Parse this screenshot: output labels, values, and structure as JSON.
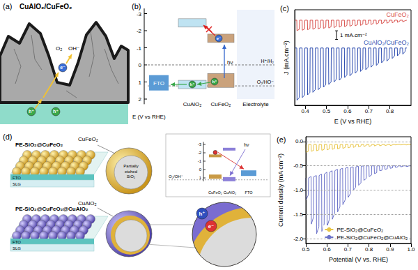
{
  "panel_a": {
    "label": "(a)",
    "title": "CuAlO₂/CuFeO₂",
    "species": [
      "O₂",
      "OH⁻"
    ],
    "electron": "e⁻",
    "hole": "h⁺"
  },
  "panel_b": {
    "label": "(b)",
    "axis_label": "E (V vs RHE)",
    "axis_ticks": [
      -3,
      -2,
      -1,
      0,
      1,
      2
    ],
    "fto": "FTO",
    "photon": "hν",
    "layers": [
      "CuAlO₂",
      "CuFeO₂",
      "Electrolyte"
    ],
    "couples": [
      "H⁺/H₂",
      "O₂/HO⁻"
    ],
    "electron": "e⁻",
    "hole": "h⁺"
  },
  "panel_d": {
    "label": "(d)",
    "top": {
      "name": "PE-SiO₂@CuFeO₂",
      "shell": "CuFeO₂",
      "core": "Partially etched SiO₂"
    },
    "bottom": {
      "name": "PE-SiO₂@CuFeO₂@CuAlO₂",
      "shell": "CuAlO₂"
    },
    "substrate": [
      "FTO",
      "SLG"
    ],
    "inset": {
      "axis_ticks": [
        -3,
        -2,
        -1,
        0,
        1
      ],
      "couple": "O₂/OH⁻",
      "layers": [
        "CuFeO₂",
        "CuAlO₂",
        "FTO"
      ],
      "photon": "hν"
    },
    "electron": "e⁻",
    "hole": "h⁺"
  },
  "chart_data": [
    {
      "type": "line",
      "title": "(c)",
      "x_label": "E (V vs RHE)",
      "y_label": "J (mA.cm⁻²)",
      "xlim": [
        0.35,
        0.9
      ],
      "xticks": [
        0.4,
        0.5,
        0.6,
        0.7,
        0.8
      ],
      "ylim": [
        -11,
        0
      ],
      "tick_labels": "x",
      "scale_bar": {
        "value": 1,
        "label": "1 mA.cm⁻²"
      },
      "x": [
        0.35,
        0.36,
        0.361,
        0.372,
        0.373,
        0.385,
        0.386,
        0.397,
        0.398,
        0.41,
        0.411,
        0.422,
        0.423,
        0.435,
        0.436,
        0.447,
        0.448,
        0.46,
        0.461,
        0.472,
        0.473,
        0.485,
        0.486,
        0.497,
        0.498,
        0.51,
        0.511,
        0.522,
        0.523,
        0.535,
        0.536,
        0.547,
        0.548,
        0.56,
        0.561,
        0.572,
        0.573,
        0.585,
        0.586,
        0.597,
        0.598,
        0.61,
        0.611,
        0.622,
        0.623,
        0.635,
        0.636,
        0.647,
        0.648,
        0.66,
        0.661,
        0.672,
        0.673,
        0.685,
        0.686,
        0.697,
        0.698,
        0.71,
        0.711,
        0.722,
        0.723,
        0.735,
        0.736,
        0.747,
        0.748,
        0.76,
        0.761,
        0.772,
        0.773,
        0.785,
        0.786,
        0.797,
        0.798,
        0.81,
        0.811,
        0.822,
        0.823,
        0.835,
        0.836,
        0.847,
        0.848,
        0.86,
        0.861,
        0.872,
        0.873,
        0.88
      ],
      "series": [
        {
          "name": "CuFeO₂",
          "color": "#d9534f",
          "values": [
            -1.2,
            -1.2,
            -2.4,
            -2.25,
            -1.2,
            -1.2,
            -2.35,
            -2.2,
            -1.2,
            -1.2,
            -2.3,
            -2.15,
            -1.2,
            -1.2,
            -2.25,
            -2.1,
            -1.2,
            -1.2,
            -2.2,
            -2.05,
            -1.2,
            -1.2,
            -2.15,
            -2.0,
            -1.2,
            -1.2,
            -2.1,
            -1.95,
            -1.2,
            -1.2,
            -2.05,
            -1.9,
            -1.2,
            -1.2,
            -2.0,
            -1.85,
            -1.2,
            -1.2,
            -1.95,
            -1.8,
            -1.2,
            -1.2,
            -1.9,
            -1.75,
            -1.2,
            -1.2,
            -1.85,
            -1.7,
            -1.2,
            -1.2,
            -1.8,
            -1.65,
            -1.2,
            -1.2,
            -1.75,
            -1.6,
            -1.2,
            -1.2,
            -1.7,
            -1.55,
            -1.2,
            -1.2,
            -1.65,
            -1.5,
            -1.2,
            -1.2,
            -1.6,
            -1.45,
            -1.2,
            -1.2,
            -1.55,
            -1.4,
            -1.2,
            -1.2,
            -1.5,
            -1.35,
            -1.2,
            -1.2,
            -1.45,
            -1.3,
            -1.2,
            -1.2,
            -1.4,
            -1.25,
            -1.2,
            -1.2
          ]
        },
        {
          "name": "CuAlO₂/CuFeO₂",
          "color": "#2e4db0",
          "values": [
            -4.4,
            -4.4,
            -10.4,
            -10.1,
            -4.4,
            -4.4,
            -10.1,
            -9.8,
            -4.4,
            -4.4,
            -9.8,
            -9.5,
            -4.4,
            -4.4,
            -9.5,
            -9.2,
            -4.4,
            -4.4,
            -9.2,
            -8.9,
            -4.4,
            -4.4,
            -8.9,
            -8.6,
            -4.4,
            -4.4,
            -8.6,
            -8.3,
            -4.4,
            -4.4,
            -8.3,
            -8.0,
            -4.4,
            -4.4,
            -8.1,
            -7.8,
            -4.4,
            -4.4,
            -7.8,
            -7.5,
            -4.4,
            -4.4,
            -7.6,
            -7.3,
            -4.4,
            -4.4,
            -7.3,
            -7.0,
            -4.4,
            -4.4,
            -7.1,
            -6.8,
            -4.4,
            -4.4,
            -6.9,
            -6.6,
            -4.4,
            -4.4,
            -6.6,
            -6.3,
            -4.4,
            -4.4,
            -6.4,
            -6.1,
            -4.4,
            -4.4,
            -6.1,
            -5.8,
            -4.4,
            -4.4,
            -5.9,
            -5.6,
            -4.4,
            -4.4,
            -5.6,
            -5.3,
            -4.4,
            -4.4,
            -5.3,
            -5.0,
            -4.4,
            -4.4,
            -5.1,
            -4.8,
            -4.4,
            -4.4
          ]
        }
      ]
    },
    {
      "type": "line",
      "title": "(e)",
      "x_label": "Potential (V vs. RHE)",
      "y_label": "Current density (mA cm⁻²)",
      "xlim": [
        0.5,
        1.0
      ],
      "xticks": [
        0.5,
        0.6,
        0.7,
        0.8,
        0.9,
        {
          "value": 1.0,
          "label": "1.0"
        }
      ],
      "ylim": [
        -2.1,
        0.1
      ],
      "yticks": [
        {
          "value": 0,
          "label": "0.0"
        },
        -0.5,
        {
          "value": -1,
          "label": "-1.0"
        },
        -1.5,
        {
          "value": -2,
          "label": "-2.0"
        }
      ],
      "grid": true,
      "legend": "lower right",
      "x": [
        0.5,
        0.501,
        0.512,
        0.513,
        0.525,
        0.526,
        0.537,
        0.538,
        0.55,
        0.551,
        0.562,
        0.563,
        0.575,
        0.576,
        0.587,
        0.588,
        0.6,
        0.601,
        0.612,
        0.613,
        0.625,
        0.626,
        0.637,
        0.638,
        0.65,
        0.651,
        0.662,
        0.663,
        0.675,
        0.676,
        0.687,
        0.688,
        0.7,
        0.701,
        0.712,
        0.713,
        0.725,
        0.726,
        0.737,
        0.738,
        0.75,
        0.751,
        0.762,
        0.763,
        0.775,
        0.776,
        0.787,
        0.788,
        0.8,
        0.801,
        0.812,
        0.813,
        0.825,
        0.826,
        0.837,
        0.838,
        0.85,
        0.851,
        0.862,
        0.863,
        0.875,
        0.876,
        0.887,
        0.888,
        0.9,
        0.901,
        0.912,
        0.913,
        0.925,
        0.926,
        0.937,
        0.938,
        0.95,
        0.951,
        0.962,
        0.963,
        0.975,
        0.976,
        0.987,
        0.988,
        1.0
      ],
      "series": [
        {
          "name": "PE-SiO₂@CuFeO₂",
          "color": "#e8c547",
          "values": [
            -0.06,
            -0.22,
            -0.2,
            -0.06,
            -0.06,
            -0.2,
            -0.18,
            -0.06,
            -0.06,
            -0.19,
            -0.17,
            -0.06,
            -0.06,
            -0.18,
            -0.16,
            -0.06,
            -0.06,
            -0.17,
            -0.15,
            -0.06,
            -0.06,
            -0.16,
            -0.14,
            -0.06,
            -0.06,
            -0.15,
            -0.13,
            -0.06,
            -0.06,
            -0.14,
            -0.12,
            -0.06,
            -0.06,
            -0.13,
            -0.11,
            -0.06,
            -0.06,
            -0.12,
            -0.1,
            -0.06,
            -0.06,
            -0.11,
            -0.09,
            -0.06,
            -0.06,
            -0.1,
            -0.08,
            -0.06,
            -0.06,
            -0.1,
            -0.08,
            -0.06,
            -0.06,
            -0.09,
            -0.07,
            -0.06,
            -0.06,
            -0.09,
            -0.07,
            -0.06,
            -0.06,
            -0.08,
            -0.07,
            -0.06,
            -0.06,
            -0.08,
            -0.07,
            -0.06,
            -0.06,
            -0.07,
            -0.06,
            -0.06,
            -0.06,
            -0.07,
            -0.06,
            -0.06,
            -0.06,
            -0.07,
            -0.06,
            -0.06,
            -0.06
          ]
        },
        {
          "name": "PE-SiO₂@CuFeO₂@CuAlO₂",
          "color": "#6b72c9",
          "values": [
            -0.75,
            -1.2,
            -1.1,
            -0.75,
            -0.72,
            -1.7,
            -1.55,
            -0.72,
            -0.7,
            -1.9,
            -1.75,
            -0.7,
            -0.67,
            -1.85,
            -1.7,
            -0.67,
            -0.63,
            -1.75,
            -1.6,
            -0.63,
            -0.6,
            -1.6,
            -1.47,
            -0.6,
            -0.57,
            -1.45,
            -1.34,
            -0.57,
            -0.55,
            -1.3,
            -1.2,
            -0.55,
            -0.53,
            -1.15,
            -1.07,
            -0.53,
            -0.52,
            -1.0,
            -0.94,
            -0.52,
            -0.51,
            -0.9,
            -0.85,
            -0.51,
            -0.5,
            -0.8,
            -0.76,
            -0.5,
            -0.5,
            -0.72,
            -0.69,
            -0.5,
            -0.5,
            -0.66,
            -0.64,
            -0.5,
            -0.5,
            -0.6,
            -0.59,
            -0.5,
            -0.5,
            -0.57,
            -0.56,
            -0.5,
            -0.5,
            -0.55,
            -0.54,
            -0.5,
            -0.5,
            -0.53,
            -0.52,
            -0.5,
            -0.5,
            -0.52,
            -0.51,
            -0.5,
            -0.5,
            -0.51,
            -0.51,
            -0.5,
            -0.5
          ]
        }
      ]
    }
  ]
}
